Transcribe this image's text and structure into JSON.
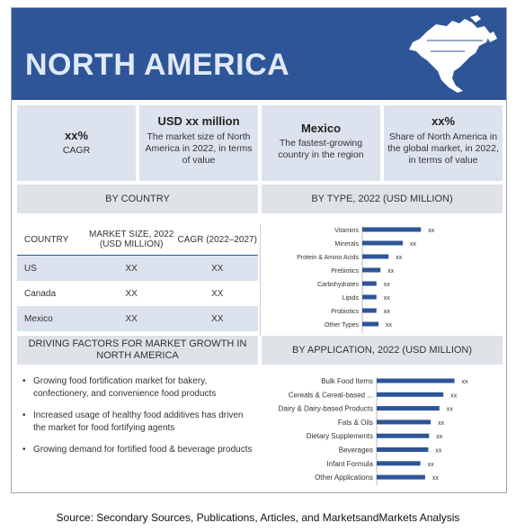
{
  "banner": {
    "title": "NORTH AMERICA",
    "map_icon": "north-america-map-icon"
  },
  "stats": [
    {
      "head": "xx%",
      "desc": "CAGR"
    },
    {
      "head": "USD xx million",
      "desc": "The market size of North America in 2022, in terms of value"
    },
    {
      "head": "Mexico",
      "desc": "The fastest-growing country in the region"
    },
    {
      "head": "xx%",
      "desc": "Share of North America in the global market, in 2022, in terms of value"
    }
  ],
  "by_country": {
    "title": "BY COUNTRY",
    "headers": [
      "COUNTRY",
      "MARKET SIZE, 2022 (USD MILLION)",
      "CAGR (2022–2027)"
    ],
    "rows": [
      [
        "US",
        "XX",
        "XX"
      ],
      [
        "Canada",
        "XX",
        "XX"
      ],
      [
        "Mexico",
        "XX",
        "XX"
      ]
    ]
  },
  "drivers": {
    "title": "DRIVING FACTORS FOR MARKET GROWTH IN NORTH AMERICA",
    "items": [
      "Growing food fortification market for bakery, confectionery, and convenience food products",
      "Increased usage of healthy food additives has driven the market for food fortifying agents",
      "Growing demand for fortified food & beverage products"
    ]
  },
  "colors": {
    "banner": "#2e5597",
    "bar": "#2e5597",
    "stat_bg": "#dce3ee",
    "panel_head_bg": "#dfe3e8"
  },
  "chart_data": [
    {
      "type": "bar",
      "orientation": "horizontal",
      "title": "BY TYPE, 2022 (USD MILLION)",
      "categories": [
        "Vitamins",
        "Minerals",
        "Protein & Amino Acids",
        "Prebiotics",
        "Carbohydrates",
        "Lipids",
        "Probiotics",
        "Other Types"
      ],
      "values": [
        29,
        20,
        13,
        9,
        7,
        7,
        7,
        8
      ],
      "value_labels": [
        "xx",
        "xx",
        "xx",
        "xx",
        "xx",
        "xx",
        "xx",
        "xx"
      ],
      "xlim": [
        0,
        40
      ],
      "grid": false
    },
    {
      "type": "bar",
      "orientation": "horizontal",
      "title": "BY APPLICATION, 2022 (USD MILLION)",
      "categories": [
        "Bulk Food Items",
        "Cereals & Cereal-based ...",
        "Dairy & Dairy-based Products",
        "Fats & Oils",
        "Dietary Supplements",
        "Beverages",
        "Infant Formula",
        "Other Applications"
      ],
      "values": [
        98,
        84,
        79,
        68,
        66,
        65,
        55,
        61
      ],
      "value_labels": [
        "xx",
        "xx",
        "xx",
        "xx",
        "xx",
        "xx",
        "xx",
        "xx"
      ],
      "xlim": [
        0,
        120
      ],
      "grid": false
    }
  ],
  "source": "Source: Secondary Sources, Publications, Articles, and MarketsandMarkets Analysis"
}
